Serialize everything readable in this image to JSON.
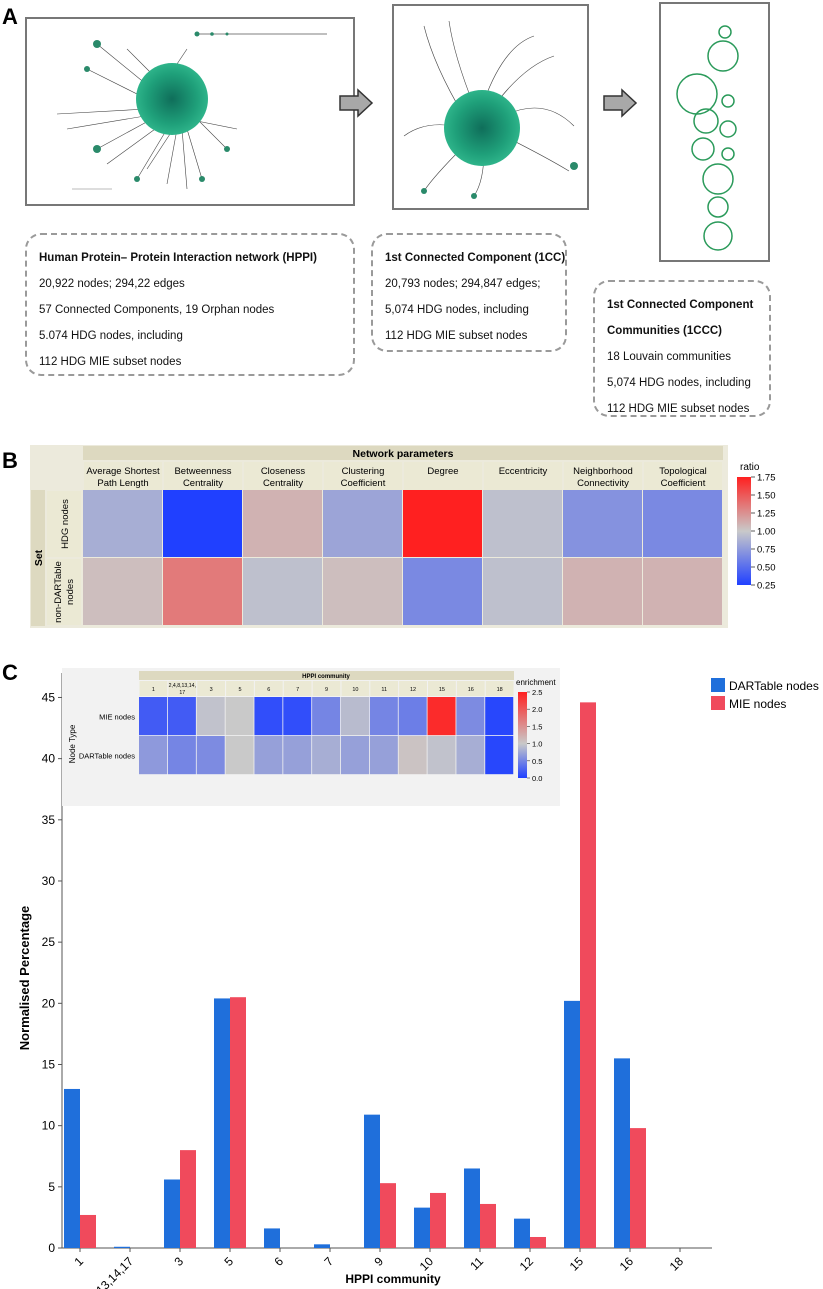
{
  "panels": {
    "a": "A",
    "b": "B",
    "c": "C"
  },
  "colors": {
    "darttable": "#1f6fdb",
    "mie": "#f04a5c",
    "network_green": "#1f9a6a"
  },
  "panel_a": {
    "box1": {
      "title": "Human Protein– Protein  Interaction network (HPPI)",
      "lines": [
        "20,922 nodes; 294,22 edges",
        "57 Connected Components, 19 Orphan nodes",
        "5.074 HDG nodes, including",
        "112 HDG MIE subset nodes"
      ]
    },
    "box2": {
      "title": "1st Connected Component (1CC)",
      "lines": [
        "20,793 nodes; 294,847 edges;",
        "5,074 HDG nodes, including",
        "112 HDG MIE subset nodes"
      ]
    },
    "box3": {
      "title_line1": "1st Connected Component",
      "title_line2": "Communities (1CCC)",
      "lines": [
        "18 Louvain communities",
        "5,074 HDG nodes, including",
        "112 HDG MIE subset nodes"
      ]
    }
  },
  "chart_data": [
    {
      "type": "heatmap",
      "title": "Network parameters",
      "row_axis_label": "Set",
      "legend_title": "ratio",
      "legend_ticks": [
        "1.75",
        "1.50",
        "1.25",
        "1.00",
        "0.75",
        "0.50",
        "0.25"
      ],
      "legend_range": [
        0.25,
        1.75
      ],
      "columns": [
        {
          "line1": "Average Shortest",
          "line2": "Path Length"
        },
        {
          "line1": "Betweenness",
          "line2": "Centrality"
        },
        {
          "line1": "Closeness",
          "line2": "Centrality"
        },
        {
          "line1": "Clustering",
          "line2": "Coefficient"
        },
        {
          "line1": "Degree",
          "line2": ""
        },
        {
          "line1": "Eccentricity",
          "line2": ""
        },
        {
          "line1": "Neighborhood",
          "line2": "Connectivity"
        },
        {
          "line1": "Topological",
          "line2": "Coefficient"
        }
      ],
      "rows": [
        {
          "line1": "HDG nodes",
          "line2": ""
        },
        {
          "line1": "non-DARTable",
          "line2": "nodes"
        }
      ],
      "values": [
        [
          0.85,
          0.25,
          1.1,
          0.8,
          1.75,
          0.95,
          0.7,
          0.65
        ],
        [
          1.05,
          1.35,
          0.95,
          1.05,
          0.65,
          0.95,
          1.1,
          1.1
        ]
      ]
    },
    {
      "type": "heatmap",
      "title": "HPPI community",
      "row_axis_label": "Node Type",
      "legend_title": "enrichment",
      "legend_ticks": [
        "2.5",
        "2.0",
        "1.5",
        "1.0",
        "0.5",
        "0.0"
      ],
      "legend_range": [
        0.0,
        2.5
      ],
      "columns": [
        "1",
        "2,4,8,13,14, 17",
        "3",
        "5",
        "6",
        "7",
        "9",
        "10",
        "11",
        "12",
        "15",
        "16",
        "18"
      ],
      "rows": [
        "MIE nodes",
        "DARTable nodes"
      ],
      "values": [
        [
          0.2,
          0.2,
          0.95,
          1.0,
          0.1,
          0.1,
          0.5,
          0.9,
          0.5,
          0.45,
          2.4,
          0.55,
          0.05
        ],
        [
          0.65,
          0.5,
          0.55,
          1.0,
          0.7,
          0.7,
          0.8,
          0.7,
          0.7,
          1.05,
          0.95,
          0.8,
          0.05
        ]
      ]
    },
    {
      "type": "bar",
      "xlabel": "HPPI community",
      "ylabel": "Normalised Percentage",
      "ylim": [
        0,
        47
      ],
      "yticks": [
        0,
        5,
        10,
        15,
        20,
        25,
        30,
        35,
        40,
        45
      ],
      "categories": [
        "1",
        "2,4,8,13,14,17",
        "3",
        "5",
        "6",
        "7",
        "9",
        "10",
        "11",
        "12",
        "15",
        "16",
        "18"
      ],
      "series": [
        {
          "name": "DARTable nodes",
          "values": [
            13.0,
            0.1,
            5.6,
            20.4,
            1.6,
            0.3,
            10.9,
            3.3,
            6.5,
            2.4,
            20.2,
            15.5,
            0.0
          ]
        },
        {
          "name": "MIE nodes",
          "values": [
            2.7,
            0.0,
            8.0,
            20.5,
            0.0,
            0.0,
            5.3,
            4.5,
            3.6,
            0.9,
            44.6,
            9.8,
            0.0
          ]
        }
      ],
      "legend_position": "top-right"
    }
  ]
}
